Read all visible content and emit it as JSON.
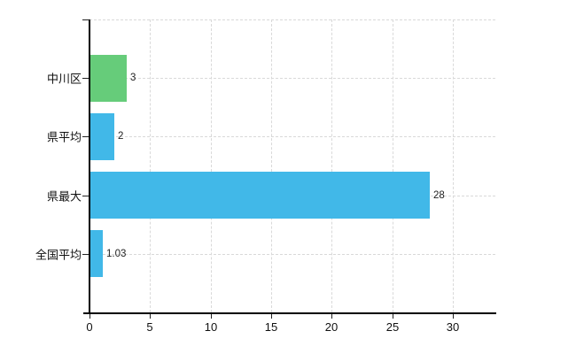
{
  "chart_data": {
    "type": "bar",
    "orientation": "horizontal",
    "title": "",
    "xlabel": "",
    "ylabel": "",
    "categories": [
      "中川区",
      "県平均",
      "県最大",
      "全国平均"
    ],
    "values": [
      3,
      2,
      28,
      1.03
    ],
    "value_labels": [
      "3",
      "2",
      "28",
      "1.03"
    ],
    "bar_colors": [
      "#66CC7A",
      "#41B8E8",
      "#41B8E8",
      "#41B8E8"
    ],
    "x_ticks": [
      0,
      5,
      10,
      15,
      20,
      25,
      30
    ],
    "x_tick_labels": [
      "0",
      "5",
      "10",
      "15",
      "20",
      "25",
      "30"
    ],
    "xlim": [
      0,
      33.5
    ],
    "grid": "dashed",
    "grid_color": "#d9d9d9",
    "axis_color": "#000000",
    "text_color": "#111111",
    "legend": "none",
    "background_color": "#ffffff"
  }
}
